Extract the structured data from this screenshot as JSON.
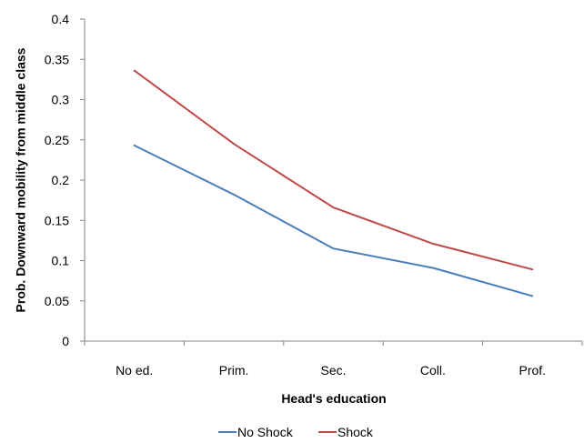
{
  "chart_data": {
    "type": "line",
    "title": "",
    "xlabel": "Head's education",
    "ylabel": "Prob. Downward mobility from middle class",
    "categories": [
      "No ed.",
      "Prim.",
      "Sec.",
      "Coll.",
      "Prof."
    ],
    "ylim": [
      0,
      0.4
    ],
    "yticks": [
      0,
      0.05,
      0.1,
      0.15,
      0.2,
      0.25,
      0.3,
      0.35,
      0.4
    ],
    "ytick_labels": [
      "0",
      "0.05",
      "0.1",
      "0.15",
      "0.2",
      "0.25",
      "0.3",
      "0.35",
      "0.4"
    ],
    "grid": false,
    "legend_position": "bottom",
    "series": [
      {
        "name": "No Shock",
        "color": "#4a7ebb",
        "values": [
          0.243,
          0.182,
          0.115,
          0.091,
          0.056
        ]
      },
      {
        "name": "Shock",
        "color": "#be4b48",
        "values": [
          0.336,
          0.245,
          0.166,
          0.121,
          0.089
        ]
      }
    ]
  }
}
